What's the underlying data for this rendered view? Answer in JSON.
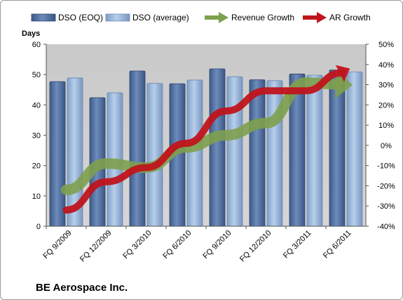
{
  "company_label": "BE Aerospace Inc.",
  "colors": {
    "plot_bg": "#c0c0c0",
    "dso_eoq": "#4f6e9e",
    "dso_avg": "#93b1d6",
    "revenue_growth": "#7ea04d",
    "ar_growth": "#c0141c"
  },
  "chart_data": {
    "type": "bar",
    "categories": [
      "FQ 9/2009",
      "FQ 12/2009",
      "FQ 3/2010",
      "FQ 6/2010",
      "FQ 9/2010",
      "FQ 12/2010",
      "FQ 3/2011",
      "FQ 6/2011"
    ],
    "series": [
      {
        "name": "DSO (EOQ)",
        "kind": "bar",
        "axis": "left",
        "values": [
          47.7,
          42.4,
          51.2,
          47.0,
          51.9,
          48.3,
          50.2,
          51.5
        ]
      },
      {
        "name": "DSO (average)",
        "kind": "bar",
        "axis": "left",
        "values": [
          48.9,
          44.0,
          47.1,
          48.2,
          49.3,
          48.0,
          49.8,
          50.9
        ]
      },
      {
        "name": "Revenue Growth",
        "kind": "line",
        "axis": "right",
        "values": [
          -22,
          -9,
          -11,
          -1,
          5,
          11,
          31,
          30
        ]
      },
      {
        "name": "AR Growth",
        "kind": "line",
        "axis": "right",
        "values": [
          -32,
          -18,
          -11,
          1,
          17,
          27,
          27,
          37
        ]
      }
    ],
    "ylabel": "Days",
    "ylim": [
      0,
      60
    ],
    "yticks": [
      "0",
      "10",
      "20",
      "30",
      "40",
      "50",
      "60"
    ],
    "y2lim": [
      -40,
      50
    ],
    "y2ticks": [
      "-40%",
      "-30%",
      "-20%",
      "-10%",
      "0%",
      "10%",
      "20%",
      "30%",
      "40%",
      "50%"
    ],
    "grid": false,
    "legend": "top"
  }
}
